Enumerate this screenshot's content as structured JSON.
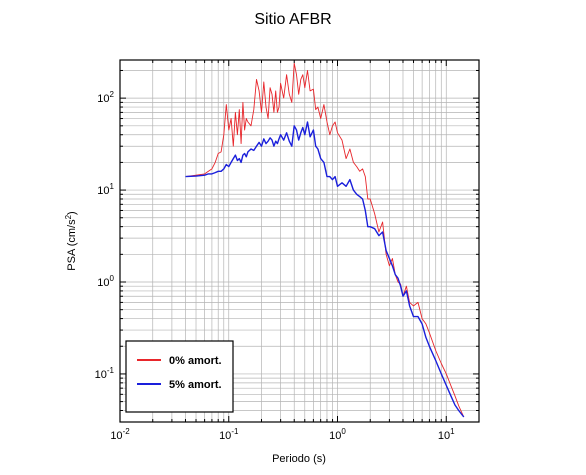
{
  "chart_data": {
    "type": "line",
    "title": "Sitio AFBR",
    "xlabel": "Periodo (s)",
    "ylabel": "PSA (cm/s²)",
    "ylabel_base": "PSA (cm/s",
    "ylabel_sup": "2",
    "ylabel_end": ")",
    "x_scale": "log",
    "y_scale": "log",
    "xlim": [
      0.01,
      20
    ],
    "ylim": [
      0.03,
      260
    ],
    "grid": true,
    "legend_position": "bottom-left",
    "x_ticks": [
      {
        "base": "10",
        "exp": "-2",
        "value": 0.01
      },
      {
        "base": "10",
        "exp": "-1",
        "value": 0.1
      },
      {
        "base": "10",
        "exp": "0",
        "value": 1
      },
      {
        "base": "10",
        "exp": "1",
        "value": 10
      }
    ],
    "y_ticks": [
      {
        "base": "10",
        "exp": "-1",
        "value": 0.1
      },
      {
        "base": "10",
        "exp": "0",
        "value": 1
      },
      {
        "base": "10",
        "exp": "1",
        "value": 10
      },
      {
        "base": "10",
        "exp": "2",
        "value": 100
      }
    ],
    "series": [
      {
        "name": "0% amort.",
        "color": "#e8262b",
        "x": [
          0.04,
          0.05,
          0.06,
          0.065,
          0.07,
          0.075,
          0.08,
          0.085,
          0.09,
          0.095,
          0.1,
          0.105,
          0.11,
          0.115,
          0.12,
          0.125,
          0.13,
          0.135,
          0.14,
          0.145,
          0.15,
          0.16,
          0.17,
          0.18,
          0.19,
          0.2,
          0.21,
          0.22,
          0.23,
          0.24,
          0.25,
          0.26,
          0.27,
          0.28,
          0.29,
          0.3,
          0.32,
          0.34,
          0.36,
          0.38,
          0.4,
          0.42,
          0.44,
          0.46,
          0.48,
          0.5,
          0.53,
          0.56,
          0.6,
          0.63,
          0.66,
          0.7,
          0.75,
          0.8,
          0.85,
          0.9,
          0.95,
          1.0,
          1.1,
          1.2,
          1.3,
          1.4,
          1.5,
          1.6,
          1.7,
          1.8,
          1.9,
          2.0,
          2.2,
          2.4,
          2.6,
          2.8,
          3.0,
          3.2,
          3.4,
          3.6,
          3.8,
          4.0,
          4.3,
          4.6,
          5.0,
          5.5,
          6.0,
          6.5,
          7.0,
          8.0,
          9.0,
          10.0,
          11.0,
          12.0,
          13.0,
          14.5
        ],
        "y": [
          14,
          14.5,
          15,
          16,
          17,
          20,
          25,
          26,
          40,
          85,
          45,
          60,
          30,
          70,
          40,
          75,
          32,
          90,
          45,
          60,
          55,
          50,
          75,
          160,
          120,
          70,
          150,
          80,
          60,
          130,
          110,
          70,
          120,
          70,
          80,
          145,
          100,
          180,
          110,
          90,
          240,
          180,
          110,
          160,
          180,
          130,
          200,
          120,
          125,
          75,
          80,
          60,
          85,
          55,
          40,
          50,
          55,
          42,
          35,
          22,
          28,
          20,
          18,
          16,
          17,
          14,
          8,
          8,
          5.5,
          3.5,
          4.5,
          2.0,
          1.5,
          1.8,
          1.2,
          1.0,
          0.95,
          0.7,
          0.9,
          0.6,
          0.55,
          0.6,
          0.4,
          0.35,
          0.28,
          0.18,
          0.13,
          0.1,
          0.075,
          0.058,
          0.045,
          0.034
        ]
      },
      {
        "name": "5% amort.",
        "color": "#1a1fdb",
        "x": [
          0.04,
          0.05,
          0.06,
          0.065,
          0.07,
          0.075,
          0.08,
          0.085,
          0.09,
          0.095,
          0.1,
          0.105,
          0.11,
          0.115,
          0.12,
          0.125,
          0.13,
          0.135,
          0.14,
          0.145,
          0.15,
          0.16,
          0.17,
          0.18,
          0.19,
          0.2,
          0.21,
          0.22,
          0.23,
          0.24,
          0.25,
          0.26,
          0.27,
          0.28,
          0.29,
          0.3,
          0.32,
          0.34,
          0.36,
          0.38,
          0.4,
          0.42,
          0.44,
          0.46,
          0.48,
          0.5,
          0.53,
          0.56,
          0.6,
          0.63,
          0.66,
          0.7,
          0.75,
          0.8,
          0.85,
          0.9,
          0.95,
          1.0,
          1.1,
          1.2,
          1.3,
          1.4,
          1.5,
          1.6,
          1.7,
          1.8,
          1.9,
          2.0,
          2.2,
          2.4,
          2.6,
          2.8,
          3.0,
          3.2,
          3.4,
          3.6,
          3.8,
          4.0,
          4.3,
          4.6,
          5.0,
          5.5,
          6.0,
          6.5,
          7.0,
          8.0,
          9.0,
          10.0,
          11.0,
          12.0,
          13.0,
          14.5
        ],
        "y": [
          14,
          14.2,
          14.5,
          15,
          15,
          15.5,
          16,
          16,
          17,
          19,
          18,
          20,
          22,
          24,
          21,
          22,
          20,
          24,
          25,
          23,
          26,
          28,
          27,
          30,
          33,
          30,
          36,
          32,
          34,
          37,
          35,
          30,
          34,
          32,
          36,
          40,
          35,
          42,
          34,
          30,
          50,
          45,
          35,
          42,
          48,
          40,
          55,
          38,
          45,
          30,
          28,
          22,
          20,
          14,
          14,
          13,
          14,
          11,
          12,
          11,
          13,
          10,
          9,
          8.5,
          8,
          6,
          4,
          4,
          3.8,
          3.2,
          3.5,
          2.2,
          1.8,
          1.5,
          1.2,
          1.1,
          0.9,
          0.7,
          0.8,
          0.55,
          0.42,
          0.42,
          0.35,
          0.25,
          0.2,
          0.14,
          0.1,
          0.075,
          0.058,
          0.046,
          0.04,
          0.034
        ]
      }
    ]
  }
}
